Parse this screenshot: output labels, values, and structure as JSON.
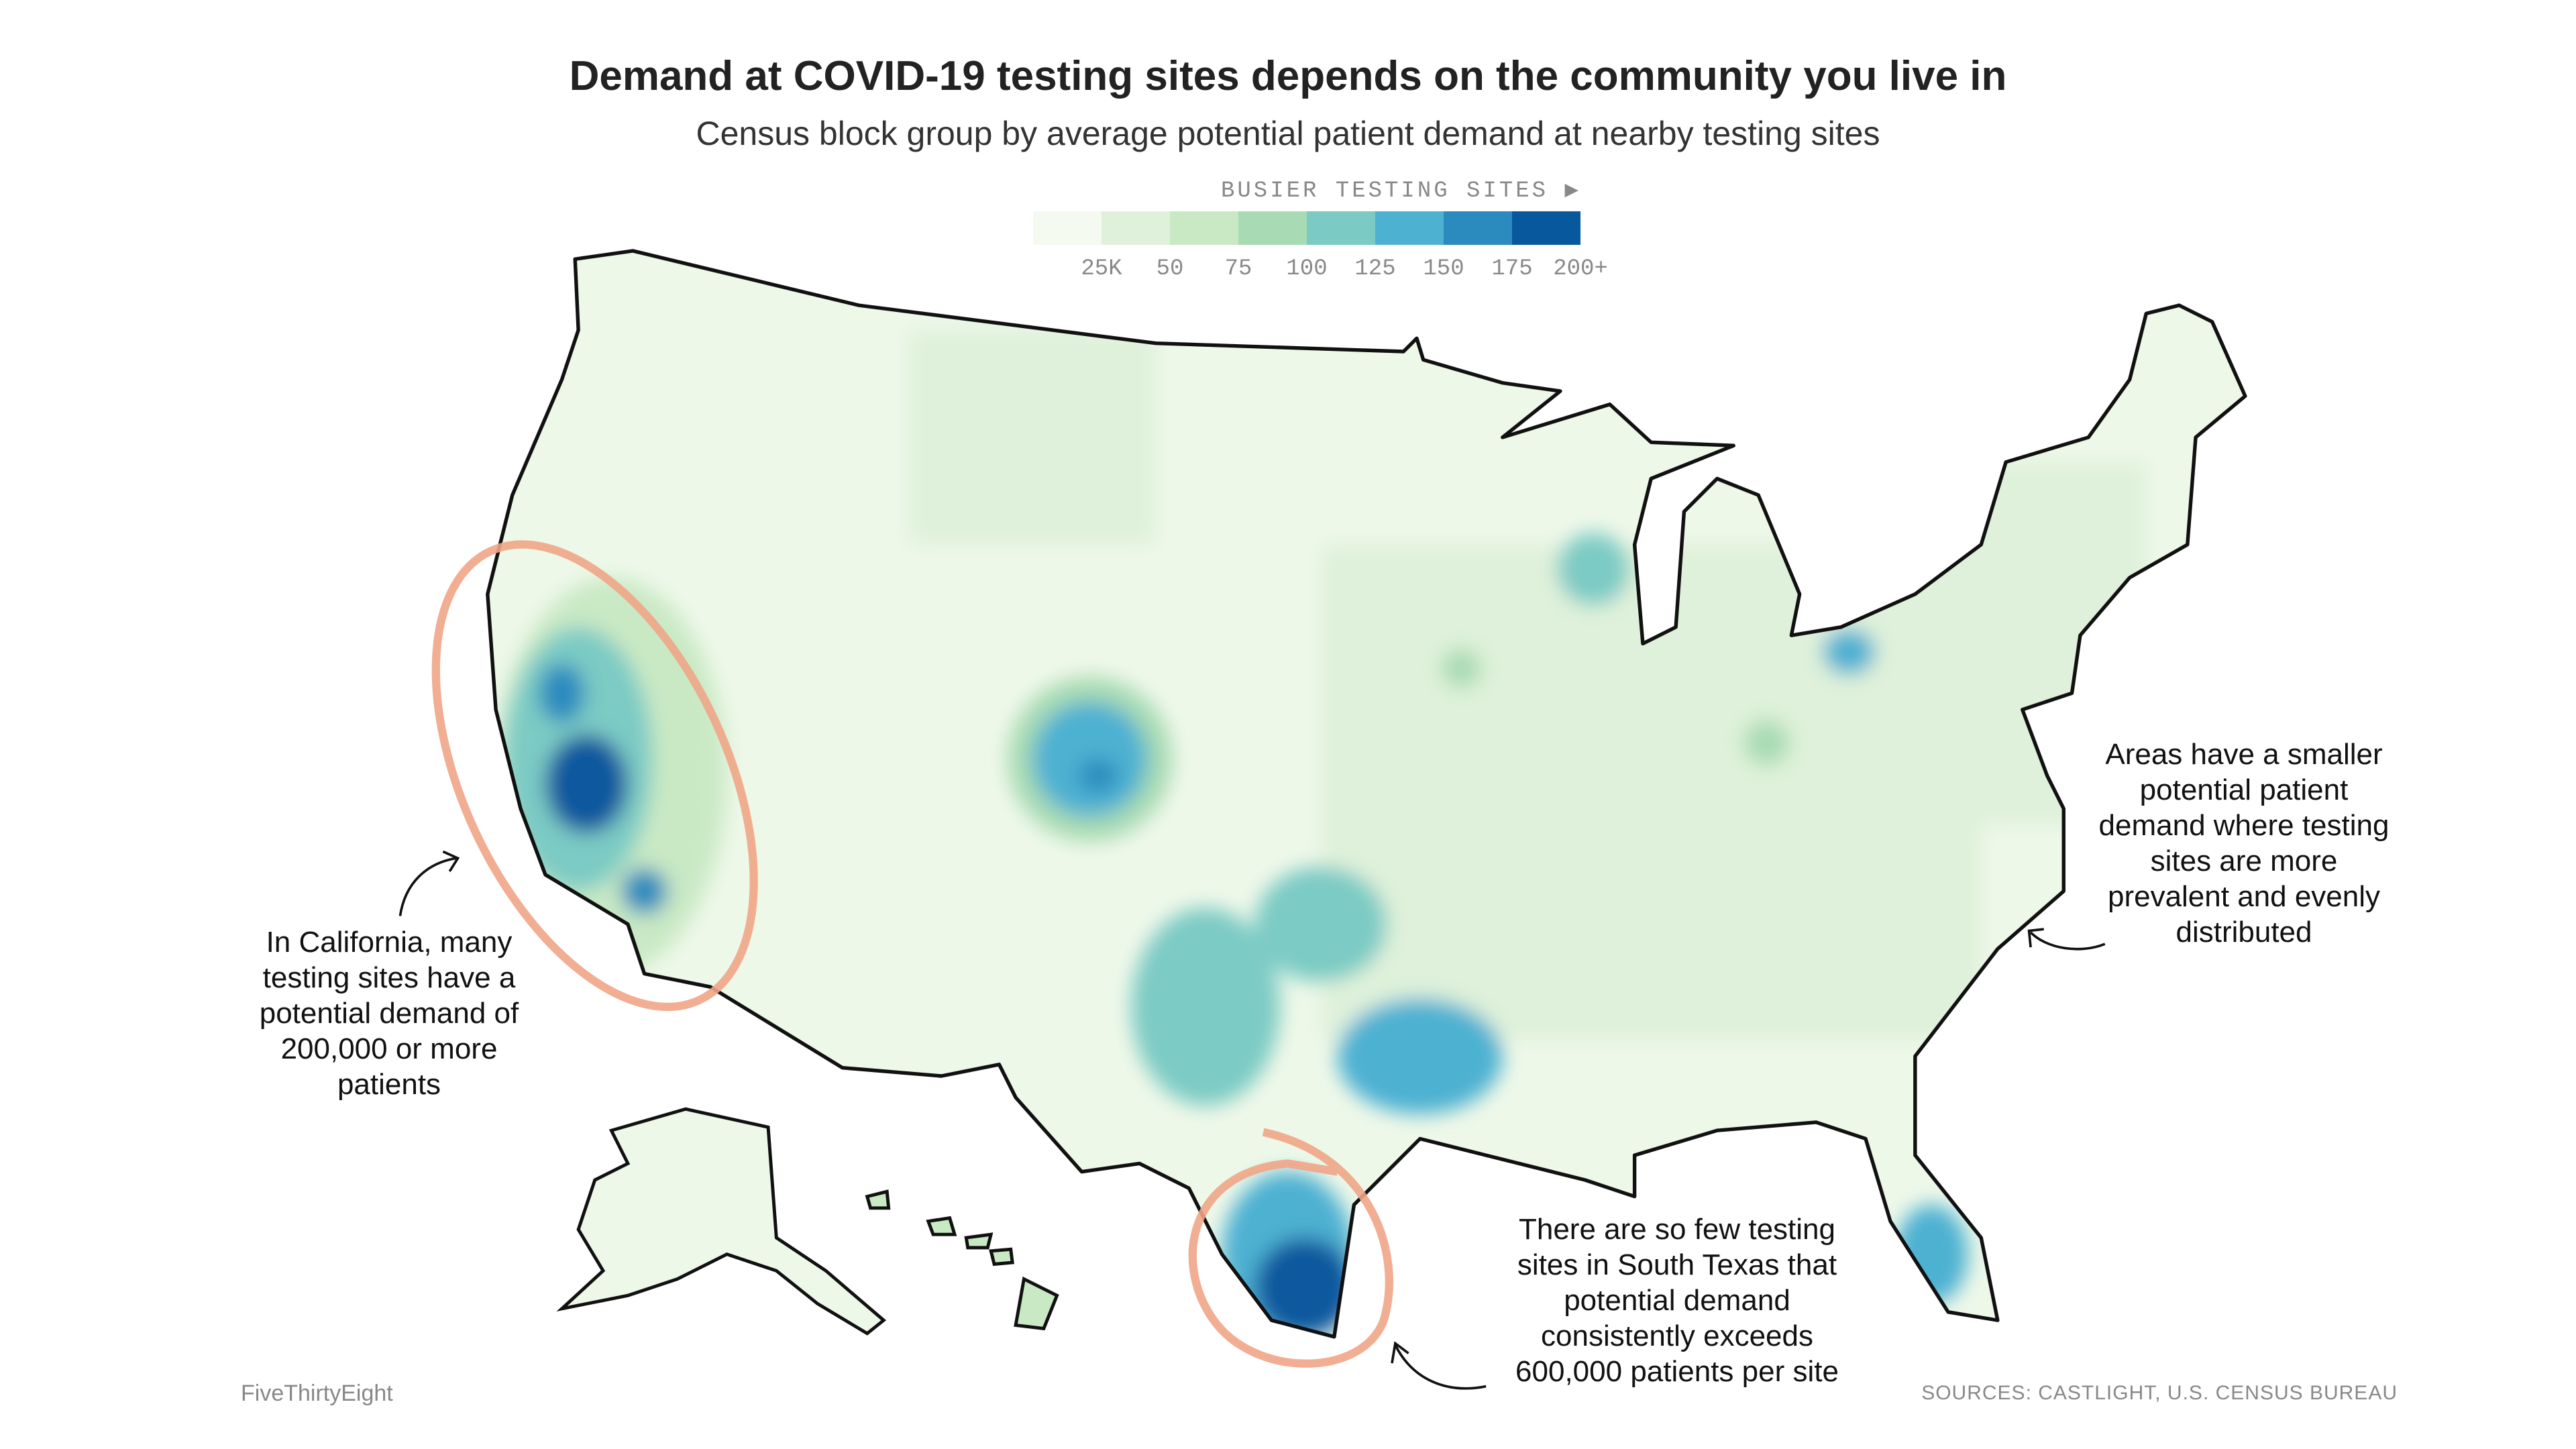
{
  "header": {
    "title": "Demand at COVID-19 testing sites depends on the community you live in",
    "subtitle": "Census block group by average potential patient demand at nearby testing sites"
  },
  "legend": {
    "label": "BUSIER TESTING SITES ▶",
    "colors": [
      "#f4faef",
      "#dff1da",
      "#c9e9c4",
      "#a8dbb4",
      "#7bcbc4",
      "#4db1d2",
      "#2b8bbe",
      "#08589e"
    ],
    "ticks": [
      "25K",
      "50",
      "75",
      "100",
      "125",
      "150",
      "175",
      "200+"
    ]
  },
  "annotations": {
    "california": "In California, many testing sites have a potential demand of 200,000 or more patients",
    "east": "Areas have a smaller potential patient demand where testing sites are more prevalent and evenly distributed",
    "south_texas": "There are so few testing sites in South Texas that potential demand consistently exceeds 600,000 patients per site"
  },
  "footer": {
    "credit": "FiveThirtyEight",
    "source": "SOURCES: CASTLIGHT, U.S. CENSUS BUREAU"
  },
  "colors": {
    "highlight": "#f0a587",
    "outline": "#111111"
  }
}
